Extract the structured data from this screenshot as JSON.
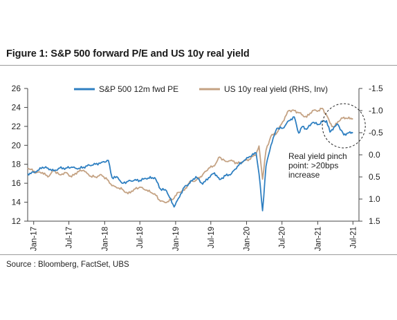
{
  "figure": {
    "title": "Figure 1: S&P 500 forward P/E and US 10y real yield",
    "source": "Source : Bloomberg, FactSet, UBS"
  },
  "chart_data": {
    "type": "line",
    "title": "Figure 1: S&P 500 forward P/E and US 10y real yield",
    "xlabel": "",
    "ylabel": "",
    "y2label": "",
    "grid": false,
    "legend_position": "top",
    "x_ticks": [
      "Jan-17",
      "Jul-17",
      "Jan-18",
      "Jul-18",
      "Jan-19",
      "Jul-19",
      "Jan-20",
      "Jul-20",
      "Jan-21",
      "Jul-21"
    ],
    "y_left": {
      "range": [
        12,
        26
      ],
      "ticks": [
        "12",
        "14",
        "16",
        "18",
        "20",
        "22",
        "24",
        "26"
      ]
    },
    "y_right": {
      "range": [
        -1.5,
        1.5
      ],
      "inverted": true,
      "ticks": [
        "-1.5",
        "-1.0",
        "-0.5",
        "0.0",
        "0.5",
        "1.0",
        "1.5"
      ]
    },
    "x_range": [
      "2016-12-01",
      "2021-08-01"
    ],
    "series": [
      {
        "name": "S&P 500 12m fwd PE",
        "axis": "left",
        "color": "#2e7fc1",
        "points": [
          [
            "2016-12-01",
            17.0
          ],
          [
            "2017-01-15",
            17.2
          ],
          [
            "2017-02-15",
            17.7
          ],
          [
            "2017-03-15",
            17.6
          ],
          [
            "2017-04-15",
            17.3
          ],
          [
            "2017-05-15",
            17.6
          ],
          [
            "2017-06-15",
            17.6
          ],
          [
            "2017-07-15",
            17.7
          ],
          [
            "2017-08-15",
            17.5
          ],
          [
            "2017-09-15",
            17.7
          ],
          [
            "2017-10-15",
            17.9
          ],
          [
            "2017-11-15",
            18.0
          ],
          [
            "2017-12-15",
            18.2
          ],
          [
            "2018-01-20",
            18.4
          ],
          [
            "2018-02-08",
            16.6
          ],
          [
            "2018-03-10",
            16.6
          ],
          [
            "2018-04-01",
            16.0
          ],
          [
            "2018-05-01",
            16.2
          ],
          [
            "2018-06-01",
            16.3
          ],
          [
            "2018-07-01",
            16.3
          ],
          [
            "2018-08-01",
            16.5
          ],
          [
            "2018-09-15",
            16.6
          ],
          [
            "2018-10-15",
            15.4
          ],
          [
            "2018-11-15",
            15.2
          ],
          [
            "2018-12-24",
            13.5
          ],
          [
            "2019-01-15",
            14.4
          ],
          [
            "2019-02-15",
            15.6
          ],
          [
            "2019-03-15",
            16.0
          ],
          [
            "2019-04-15",
            16.7
          ],
          [
            "2019-05-20",
            15.9
          ],
          [
            "2019-06-20",
            16.6
          ],
          [
            "2019-07-20",
            17.1
          ],
          [
            "2019-08-15",
            16.4
          ],
          [
            "2019-09-15",
            16.8
          ],
          [
            "2019-10-15",
            17.0
          ],
          [
            "2019-11-15",
            17.8
          ],
          [
            "2019-12-15",
            18.3
          ],
          [
            "2020-01-15",
            18.8
          ],
          [
            "2020-02-19",
            19.2
          ],
          [
            "2020-03-05",
            17.0
          ],
          [
            "2020-03-23",
            13.1
          ],
          [
            "2020-04-10",
            17.8
          ],
          [
            "2020-05-05",
            20.0
          ],
          [
            "2020-06-05",
            21.8
          ],
          [
            "2020-07-05",
            21.8
          ],
          [
            "2020-08-05",
            22.6
          ],
          [
            "2020-09-02",
            23.0
          ],
          [
            "2020-09-25",
            21.3
          ],
          [
            "2020-10-15",
            22.0
          ],
          [
            "2020-11-05",
            21.7
          ],
          [
            "2020-12-05",
            22.4
          ],
          [
            "2021-01-05",
            22.2
          ],
          [
            "2021-01-25",
            22.5
          ],
          [
            "2021-02-15",
            22.6
          ],
          [
            "2021-03-05",
            21.4
          ],
          [
            "2021-03-25",
            21.9
          ],
          [
            "2021-04-15",
            22.2
          ],
          [
            "2021-05-15",
            21.1
          ],
          [
            "2021-06-05",
            21.3
          ],
          [
            "2021-07-01",
            21.3
          ]
        ]
      },
      {
        "name": "US 10y real yield (RHS, Inv)",
        "axis": "right",
        "color": "#c4a283",
        "points": [
          [
            "2016-12-01",
            0.3
          ],
          [
            "2017-01-15",
            0.4
          ],
          [
            "2017-02-15",
            0.4
          ],
          [
            "2017-03-15",
            0.5
          ],
          [
            "2017-04-15",
            0.35
          ],
          [
            "2017-05-15",
            0.45
          ],
          [
            "2017-06-15",
            0.4
          ],
          [
            "2017-07-15",
            0.5
          ],
          [
            "2017-08-15",
            0.38
          ],
          [
            "2017-09-15",
            0.35
          ],
          [
            "2017-10-15",
            0.48
          ],
          [
            "2017-11-15",
            0.5
          ],
          [
            "2017-12-15",
            0.45
          ],
          [
            "2018-01-20",
            0.58
          ],
          [
            "2018-02-08",
            0.7
          ],
          [
            "2018-03-10",
            0.75
          ],
          [
            "2018-04-01",
            0.78
          ],
          [
            "2018-05-01",
            0.88
          ],
          [
            "2018-06-01",
            0.78
          ],
          [
            "2018-07-01",
            0.73
          ],
          [
            "2018-08-01",
            0.8
          ],
          [
            "2018-09-15",
            0.88
          ],
          [
            "2018-10-15",
            1.05
          ],
          [
            "2018-11-15",
            1.08
          ],
          [
            "2018-12-24",
            0.98
          ],
          [
            "2019-01-15",
            0.85
          ],
          [
            "2019-02-15",
            0.8
          ],
          [
            "2019-03-15",
            0.6
          ],
          [
            "2019-04-15",
            0.58
          ],
          [
            "2019-05-20",
            0.45
          ],
          [
            "2019-06-20",
            0.3
          ],
          [
            "2019-07-20",
            0.25
          ],
          [
            "2019-08-15",
            0.05
          ],
          [
            "2019-09-15",
            0.15
          ],
          [
            "2019-10-15",
            0.12
          ],
          [
            "2019-11-15",
            0.2
          ],
          [
            "2019-12-15",
            0.15
          ],
          [
            "2020-01-15",
            0.1
          ],
          [
            "2020-02-19",
            -0.02
          ],
          [
            "2020-03-05",
            -0.2
          ],
          [
            "2020-03-23",
            0.55
          ],
          [
            "2020-04-10",
            -0.1
          ],
          [
            "2020-05-05",
            -0.42
          ],
          [
            "2020-06-05",
            -0.5
          ],
          [
            "2020-07-05",
            -0.75
          ],
          [
            "2020-08-05",
            -1.0
          ],
          [
            "2020-09-02",
            -1.0
          ],
          [
            "2020-09-25",
            -0.95
          ],
          [
            "2020-10-15",
            -0.9
          ],
          [
            "2020-11-05",
            -0.85
          ],
          [
            "2020-12-05",
            -1.0
          ],
          [
            "2021-01-05",
            -1.0
          ],
          [
            "2021-01-25",
            -1.05
          ],
          [
            "2021-02-15",
            -0.9
          ],
          [
            "2021-03-05",
            -0.72
          ],
          [
            "2021-03-25",
            -0.62
          ],
          [
            "2021-04-15",
            -0.75
          ],
          [
            "2021-05-15",
            -0.85
          ],
          [
            "2021-06-05",
            -0.82
          ],
          [
            "2021-07-01",
            -0.82
          ]
        ]
      }
    ],
    "annotations": [
      {
        "type": "ellipse",
        "style": "dashed",
        "around": [
          "2021-03-15",
          "2021-07-15"
        ]
      },
      {
        "type": "text",
        "lines": [
          "Real yield pinch",
          "point: >20bps",
          "increase"
        ]
      }
    ]
  }
}
